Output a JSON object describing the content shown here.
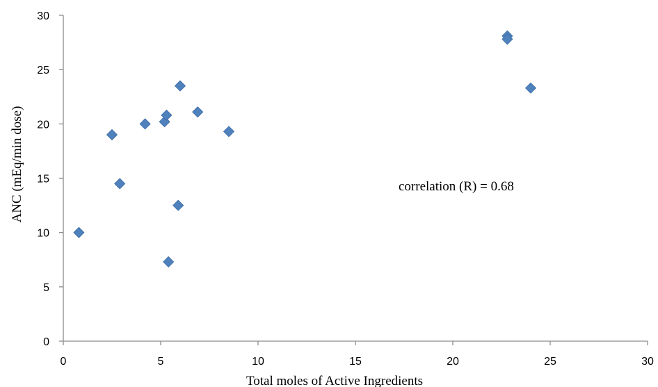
{
  "chart_data": {
    "type": "scatter",
    "title": "",
    "xlabel": "Total moles of Active Ingredients",
    "ylabel": "ANC (mEq/min dose)",
    "xlim": [
      0,
      30
    ],
    "ylim": [
      0,
      30
    ],
    "x_ticks": [
      0,
      5,
      10,
      15,
      20,
      25,
      30
    ],
    "y_ticks": [
      0,
      5,
      10,
      15,
      20,
      25,
      30
    ],
    "grid": false,
    "legend": "none",
    "marker": "diamond",
    "point_color": "#4f81bd",
    "annotation": "correlation (R) = 0.68",
    "series": [
      {
        "points": [
          {
            "x": 0.8,
            "y": 10.0
          },
          {
            "x": 2.5,
            "y": 19.0
          },
          {
            "x": 2.9,
            "y": 14.5
          },
          {
            "x": 4.2,
            "y": 20.0
          },
          {
            "x": 5.2,
            "y": 20.2
          },
          {
            "x": 5.3,
            "y": 20.8
          },
          {
            "x": 5.4,
            "y": 7.3
          },
          {
            "x": 5.9,
            "y": 12.5
          },
          {
            "x": 6.0,
            "y": 23.5
          },
          {
            "x": 6.9,
            "y": 21.1
          },
          {
            "x": 8.5,
            "y": 19.3
          },
          {
            "x": 22.8,
            "y": 28.1
          },
          {
            "x": 22.8,
            "y": 27.8
          },
          {
            "x": 24.0,
            "y": 23.3
          }
        ]
      }
    ]
  }
}
